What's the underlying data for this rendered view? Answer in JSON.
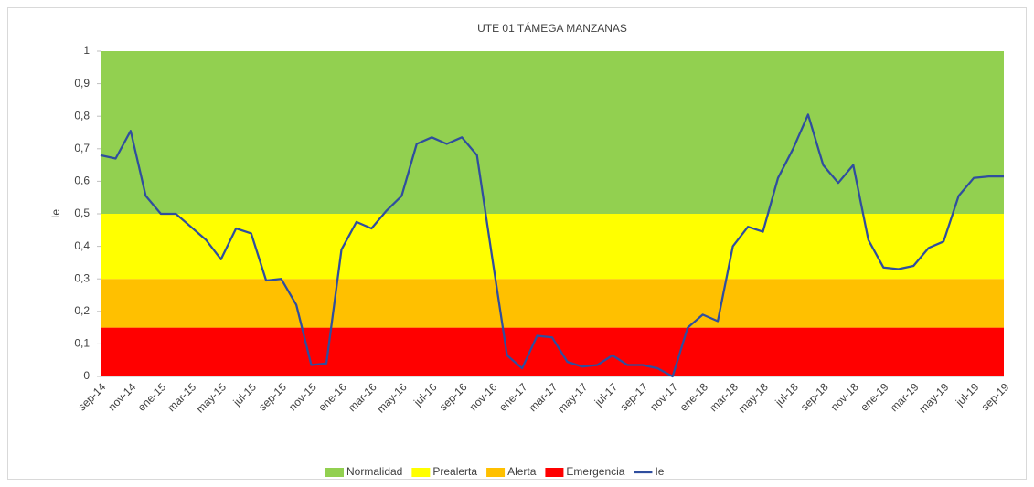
{
  "chart_data": {
    "type": "line",
    "title": "UTE 01 TÁMEGA MANZANAS",
    "y_label": "Ie",
    "categories": [
      "sep-14",
      null,
      "nov-14",
      null,
      "ene-15",
      null,
      "mar-15",
      null,
      "may-15",
      null,
      "jul-15",
      null,
      "sep-15",
      null,
      "nov-15",
      null,
      "ene-16",
      null,
      "mar-16",
      null,
      "may-16",
      null,
      "jul-16",
      null,
      "sep-16",
      null,
      "nov-16",
      null,
      "ene-17",
      null,
      "mar-17",
      null,
      "may-17",
      null,
      "jul-17",
      null,
      "sep-17",
      null,
      "nov-17",
      null,
      "ene-18",
      null,
      "mar-18",
      null,
      "may-18",
      null,
      "jul-18",
      null,
      "sep-18",
      null,
      "nov-18",
      null,
      "ene-19",
      null,
      "mar-19",
      null,
      "may-19",
      null,
      "jul-19",
      null,
      "sep-19"
    ],
    "bands": [
      {
        "name": "Normalidad",
        "color": "#92d050",
        "value": 0.5
      },
      {
        "name": "Prealerta",
        "color": "#ffff00",
        "value": 0.2
      },
      {
        "name": "Alerta",
        "color": "#ffc000",
        "value": 0.15
      },
      {
        "name": "Emergencia",
        "color": "#ff0000",
        "value": 0.15
      }
    ],
    "series": [
      {
        "name": "Ie",
        "color": "#2f4e9e",
        "values": [
          0.68,
          0.67,
          0.755,
          0.555,
          0.5,
          0.5,
          0.46,
          0.42,
          0.36,
          0.455,
          0.44,
          0.295,
          0.3,
          0.22,
          0.035,
          0.04,
          0.39,
          0.475,
          0.455,
          0.51,
          0.555,
          0.715,
          0.735,
          0.715,
          0.735,
          0.68,
          0.37,
          0.065,
          0.025,
          0.125,
          0.12,
          0.045,
          0.03,
          0.035,
          0.065,
          0.035,
          0.035,
          0.025,
          0.0,
          0.15,
          0.19,
          0.17,
          0.4,
          0.46,
          0.445,
          0.61,
          0.7,
          0.805,
          0.65,
          0.595,
          0.65,
          0.42,
          0.335,
          0.33,
          0.34,
          0.395,
          0.415,
          0.555,
          0.61,
          0.615,
          0.615
        ]
      }
    ],
    "ylim": [
      0,
      1
    ],
    "yticks": [
      0,
      {
        "value": 0.1,
        "label": "0,1"
      },
      {
        "value": 0.2,
        "label": "0,2"
      },
      {
        "value": 0.3,
        "label": "0,3"
      },
      {
        "value": 0.4,
        "label": "0,4"
      },
      {
        "value": 0.5,
        "label": "0,5"
      },
      {
        "value": 0.6,
        "label": "0,6"
      },
      {
        "value": 0.7,
        "label": "0,7"
      },
      {
        "value": 0.8,
        "label": "0,8"
      },
      {
        "value": 0.9,
        "label": "0,9"
      },
      1
    ],
    "legend": "bottom"
  }
}
